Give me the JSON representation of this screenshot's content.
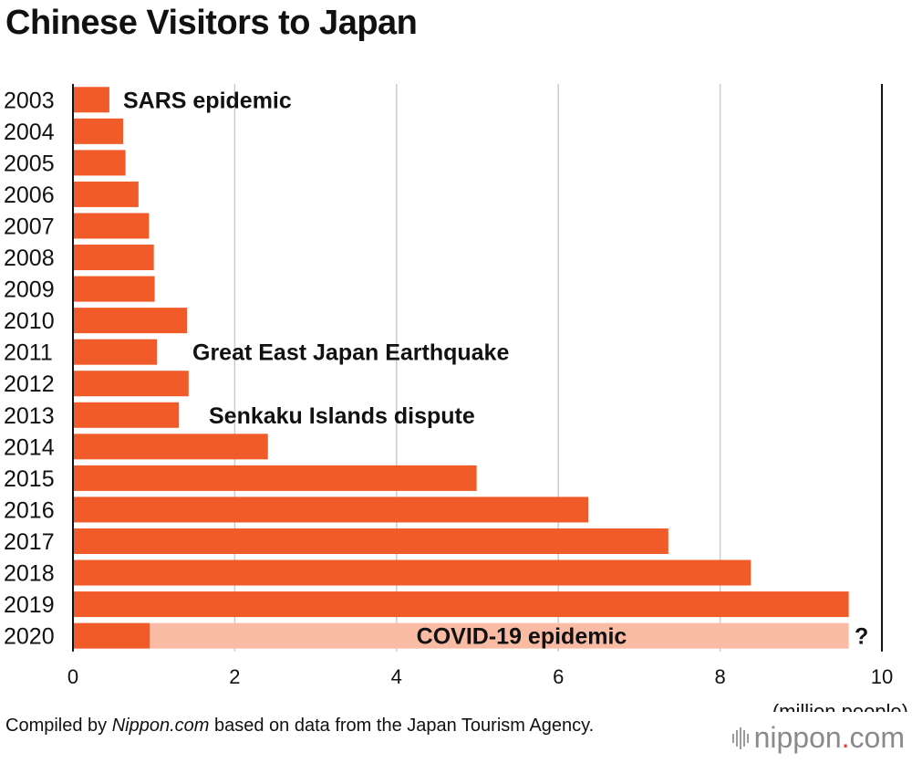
{
  "title": "Chinese Visitors to Japan",
  "chart_data": {
    "type": "bar",
    "orientation": "horizontal",
    "categories": [
      "2003",
      "2004",
      "2005",
      "2006",
      "2007",
      "2008",
      "2009",
      "2010",
      "2011",
      "2012",
      "2013",
      "2014",
      "2015",
      "2016",
      "2017",
      "2018",
      "2019",
      "2020"
    ],
    "values": [
      0.45,
      0.62,
      0.65,
      0.81,
      0.94,
      1.0,
      1.01,
      1.41,
      1.04,
      1.43,
      1.31,
      2.41,
      4.99,
      6.37,
      7.36,
      8.38,
      9.59,
      0.95
    ],
    "xlim": [
      0,
      10
    ],
    "xticks": [
      "0",
      "2",
      "4",
      "6",
      "8",
      "10"
    ],
    "xlabel": "(million people)",
    "grid": true,
    "annotations": [
      {
        "category": "2003",
        "text": "SARS epidemic"
      },
      {
        "category": "2011",
        "text": "Great East Japan Earthquake"
      },
      {
        "category": "2013",
        "text": "Senkaku Islands dispute"
      },
      {
        "category": "2020",
        "text": "COVID-19 epidemic"
      },
      {
        "category": "2020",
        "text": "?"
      }
    ],
    "colors": {
      "bar": "#f15a29",
      "shortfall": "#f9bba4",
      "grid": "#cccccc",
      "axis": "#111111"
    }
  },
  "source": {
    "prefix": "Compiled by ",
    "name": "Nippon.com",
    "suffix": " based on data from the Japan Tourism Agency."
  },
  "brand": {
    "name": "nippon",
    "dot": ".",
    "tld": "com"
  }
}
